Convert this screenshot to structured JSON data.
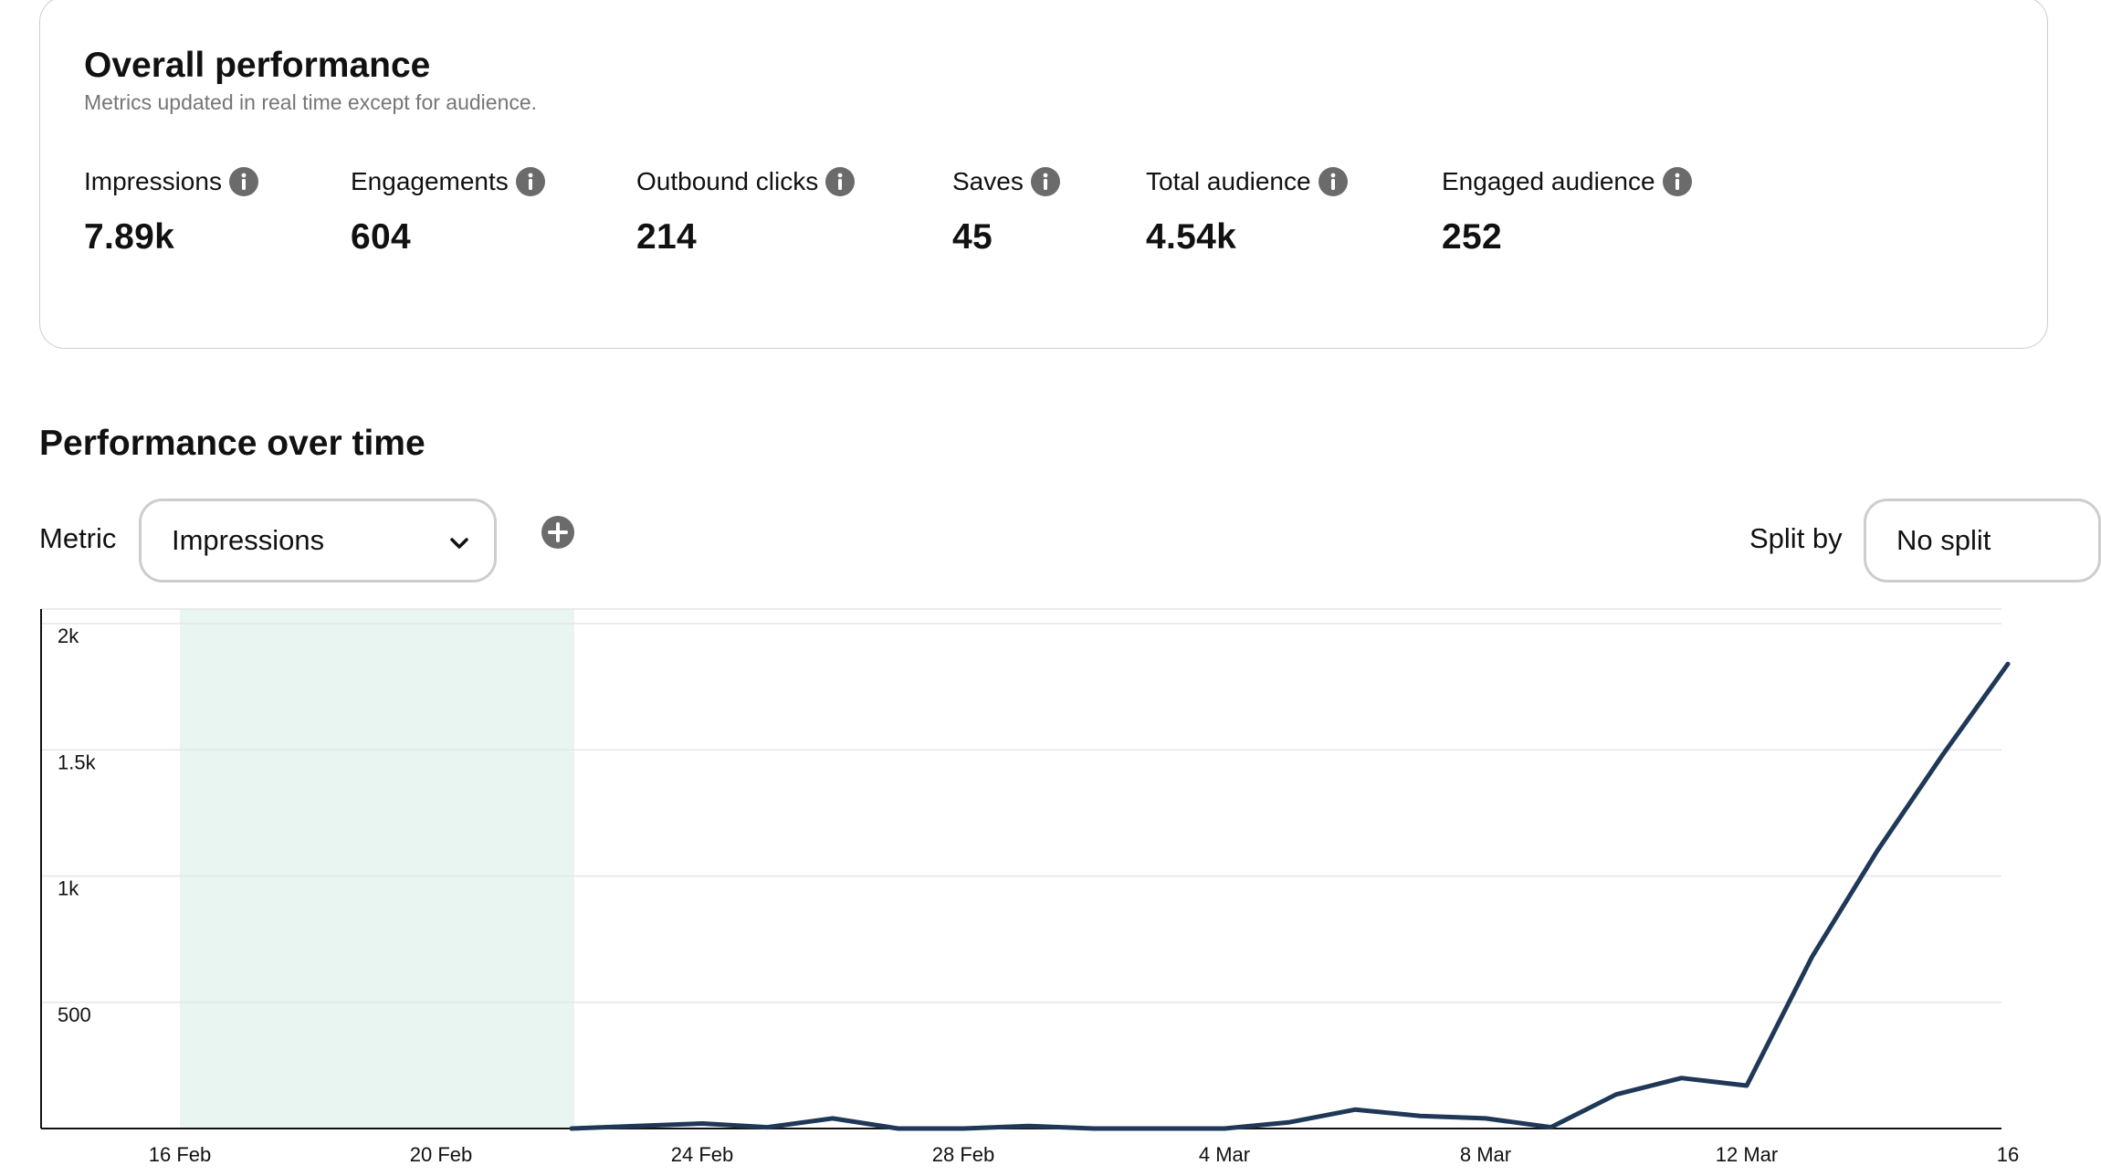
{
  "overall": {
    "title": "Overall performance",
    "subtitle": "Metrics updated in real time except for audience.",
    "metrics": [
      {
        "label": "Impressions",
        "value": "7.89k"
      },
      {
        "label": "Engagements",
        "value": "604"
      },
      {
        "label": "Outbound clicks",
        "value": "214"
      },
      {
        "label": "Saves",
        "value": "45"
      },
      {
        "label": "Total audience",
        "value": "4.54k"
      },
      {
        "label": "Engaged audience",
        "value": "252"
      }
    ],
    "info_icon": "info-icon"
  },
  "over_time": {
    "title": "Performance over time",
    "metric_label": "Metric",
    "metric_selected": "Impressions",
    "add_icon": "plus-circle-icon",
    "split_label": "Split by",
    "split_selected": "No split"
  },
  "colors": {
    "line": "#1f3857",
    "highlight": "#e8f5f1",
    "grid": "#e6e6e6",
    "icon": "#6b6b6b"
  },
  "chart_data": {
    "type": "line",
    "series_name": "Impressions",
    "x": [
      "16 Feb",
      "17 Feb",
      "18 Feb",
      "19 Feb",
      "20 Feb",
      "21 Feb",
      "22 Feb",
      "23 Feb",
      "24 Feb",
      "25 Feb",
      "26 Feb",
      "27 Feb",
      "28 Feb",
      "1 Mar",
      "2 Mar",
      "3 Mar",
      "4 Mar",
      "5 Mar",
      "6 Mar",
      "7 Mar",
      "8 Mar",
      "9 Mar",
      "10 Mar",
      "11 Mar",
      "12 Mar",
      "13 Mar",
      "14 Mar",
      "15 Mar",
      "16 Mar"
    ],
    "y": [
      null,
      null,
      null,
      null,
      null,
      null,
      0,
      10,
      20,
      5,
      40,
      0,
      0,
      10,
      0,
      0,
      0,
      25,
      75,
      50,
      40,
      5,
      135,
      200,
      170,
      680,
      1100,
      1480,
      1840
    ],
    "x_tick_labels": [
      "16 Feb",
      "20 Feb",
      "24 Feb",
      "28 Feb",
      "4 Mar",
      "8 Mar",
      "12 Mar",
      "16"
    ],
    "y_tick_labels": [
      "500",
      "1k",
      "1.5k",
      "2k"
    ],
    "y_ticks": [
      500,
      1000,
      1500,
      2000
    ],
    "ylim": [
      0,
      2000
    ],
    "highlight_range": [
      "16 Feb",
      "22 Feb"
    ],
    "grid": true
  }
}
